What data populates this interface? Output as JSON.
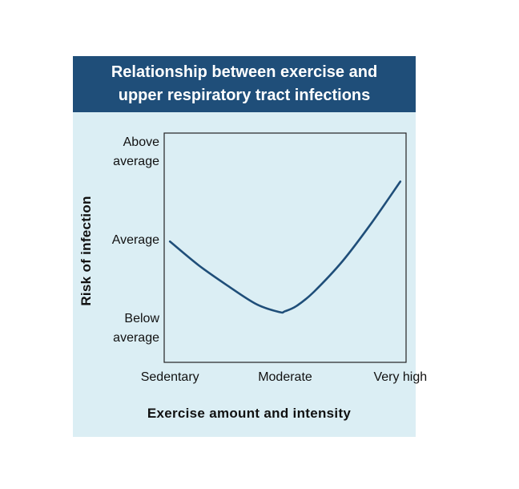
{
  "chart_data": {
    "type": "line",
    "title": "Relationship between exercise and upper respiratory tract infections",
    "xlabel": "Exercise amount and intensity",
    "ylabel": "Risk of infection",
    "categories": [
      "Sedentary",
      "Moderate",
      "Very high"
    ],
    "y_ticks": [
      {
        "lines": [
          "Above",
          "average"
        ],
        "value": 3
      },
      {
        "lines": [
          "Average"
        ],
        "value": 2
      },
      {
        "lines": [
          "Below",
          "average"
        ],
        "value": 1
      }
    ],
    "ylim": [
      0.6,
      3.2
    ],
    "xlim": [
      -0.05,
      2.05
    ],
    "series": [
      {
        "x": [
          0,
          0.25,
          0.5,
          0.75,
          0.95,
          1.0,
          1.1,
          1.25,
          1.5,
          1.75,
          2.0
        ],
        "values": [
          1.97,
          1.7,
          1.47,
          1.26,
          1.17,
          1.18,
          1.24,
          1.4,
          1.75,
          2.18,
          2.65
        ]
      }
    ],
    "grid": false,
    "colors": {
      "line": "#1f4e79",
      "panel": "#dbeef4",
      "header": "#1f4e79",
      "header_text": "#ffffff"
    }
  }
}
